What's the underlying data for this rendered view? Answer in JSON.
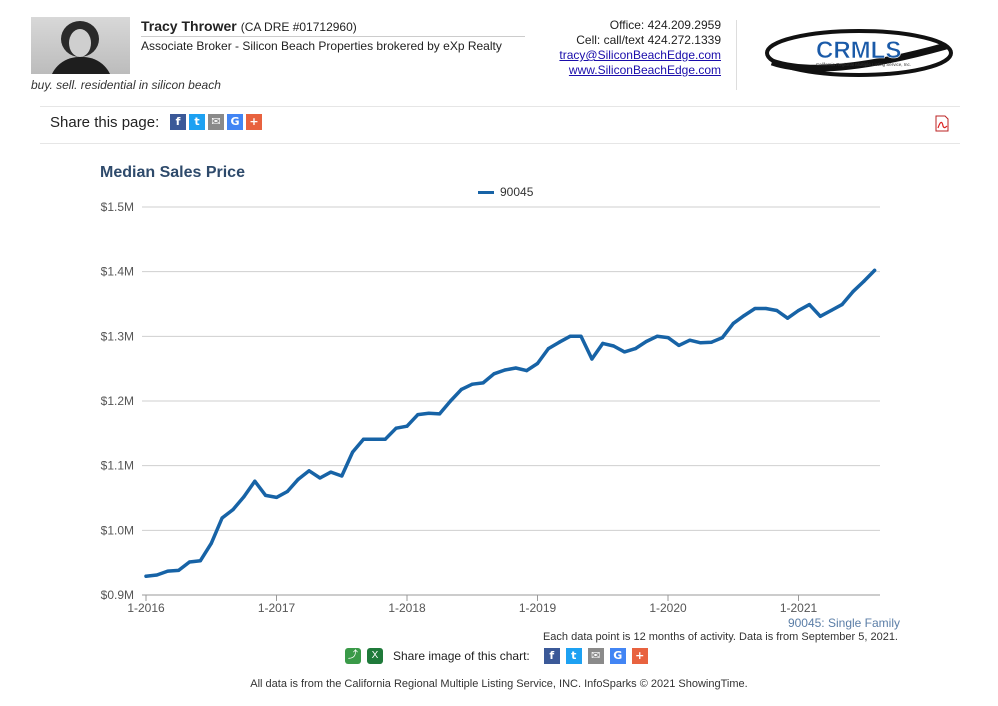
{
  "header": {
    "agent_name": "Tracy Thrower",
    "license": "(CA DRE #01712960)",
    "title": "Associate Broker - Silicon Beach Properties brokered by eXp Realty",
    "tagline": "buy. sell. residential in silicon beach",
    "office": "Office: 424.209.2959",
    "cell": "Cell: call/text 424.272.1339",
    "email": "tracy@SiliconBeachEdge.com",
    "website": "www.SiliconBeachEdge.com",
    "logo_text": "CRMLS",
    "logo_subtext": "California Regional Multiple Listing Service, Inc."
  },
  "share_bar": {
    "label": "Share this page:",
    "icons": [
      "facebook-icon",
      "twitter-icon",
      "email-icon",
      "google-icon",
      "plus-icon"
    ]
  },
  "chart_data": {
    "type": "line",
    "title": "Median Sales Price",
    "legend_position": "top-center",
    "grid": true,
    "ylim": [
      900000,
      1500000
    ],
    "y_ticks": [
      "$0.9M",
      "$1.0M",
      "$1.1M",
      "$1.2M",
      "$1.3M",
      "$1.4M",
      "$1.5M"
    ],
    "x_ticks": [
      "1-2016",
      "1-2017",
      "1-2018",
      "1-2019",
      "1-2020",
      "1-2021"
    ],
    "series": [
      {
        "name": "90045",
        "color": "#1763a6",
        "points": [
          [
            "2016-01",
            929000
          ],
          [
            "2016-02",
            931000
          ],
          [
            "2016-03",
            937000
          ],
          [
            "2016-04",
            938000
          ],
          [
            "2016-05",
            951000
          ],
          [
            "2016-06",
            953000
          ],
          [
            "2016-07",
            980000
          ],
          [
            "2016-08",
            1019000
          ],
          [
            "2016-09",
            1032000
          ],
          [
            "2016-10",
            1052000
          ],
          [
            "2016-11",
            1076000
          ],
          [
            "2016-12",
            1054000
          ],
          [
            "2017-01",
            1051000
          ],
          [
            "2017-02",
            1060000
          ],
          [
            "2017-03",
            1079000
          ],
          [
            "2017-04",
            1092000
          ],
          [
            "2017-05",
            1081000
          ],
          [
            "2017-06",
            1090000
          ],
          [
            "2017-07",
            1084000
          ],
          [
            "2017-08",
            1121000
          ],
          [
            "2017-09",
            1141000
          ],
          [
            "2017-10",
            1141000
          ],
          [
            "2017-11",
            1141000
          ],
          [
            "2017-12",
            1158000
          ],
          [
            "2018-01",
            1161000
          ],
          [
            "2018-02",
            1179000
          ],
          [
            "2018-03",
            1181000
          ],
          [
            "2018-04",
            1180000
          ],
          [
            "2018-05",
            1200000
          ],
          [
            "2018-06",
            1218000
          ],
          [
            "2018-07",
            1226000
          ],
          [
            "2018-08",
            1228000
          ],
          [
            "2018-09",
            1242000
          ],
          [
            "2018-10",
            1248000
          ],
          [
            "2018-11",
            1251000
          ],
          [
            "2018-12",
            1247000
          ],
          [
            "2019-01",
            1258000
          ],
          [
            "2019-02",
            1281000
          ],
          [
            "2019-03",
            1291000
          ],
          [
            "2019-04",
            1300000
          ],
          [
            "2019-05",
            1300000
          ],
          [
            "2019-06",
            1265000
          ],
          [
            "2019-07",
            1289000
          ],
          [
            "2019-08",
            1285000
          ],
          [
            "2019-09",
            1276000
          ],
          [
            "2019-10",
            1281000
          ],
          [
            "2019-11",
            1292000
          ],
          [
            "2019-12",
            1300000
          ],
          [
            "2020-01",
            1298000
          ],
          [
            "2020-02",
            1286000
          ],
          [
            "2020-03",
            1294000
          ],
          [
            "2020-04",
            1290000
          ],
          [
            "2020-05",
            1291000
          ],
          [
            "2020-06",
            1298000
          ],
          [
            "2020-07",
            1320000
          ],
          [
            "2020-08",
            1332000
          ],
          [
            "2020-09",
            1343000
          ],
          [
            "2020-10",
            1343000
          ],
          [
            "2020-11",
            1340000
          ],
          [
            "2020-12",
            1328000
          ],
          [
            "2021-01",
            1340000
          ],
          [
            "2021-02",
            1349000
          ],
          [
            "2021-03",
            1331000
          ],
          [
            "2021-04",
            1340000
          ],
          [
            "2021-05",
            1349000
          ],
          [
            "2021-06",
            1369000
          ],
          [
            "2021-07",
            1385000
          ],
          [
            "2021-08",
            1402000
          ]
        ]
      }
    ],
    "series_note": "90045: Single Family",
    "data_note": "Each data point is 12 months of activity. Data is from September 5, 2021."
  },
  "share_image": {
    "label": "Share image of this chart:",
    "tools": [
      "share-icon",
      "excel-icon"
    ],
    "icons": [
      "facebook-icon",
      "twitter-icon",
      "email-icon",
      "google-icon",
      "plus-icon"
    ]
  },
  "footer": {
    "text": "All data is from the California Regional Multiple Listing Service, INC. InfoSparks © 2021 ShowingTime."
  }
}
